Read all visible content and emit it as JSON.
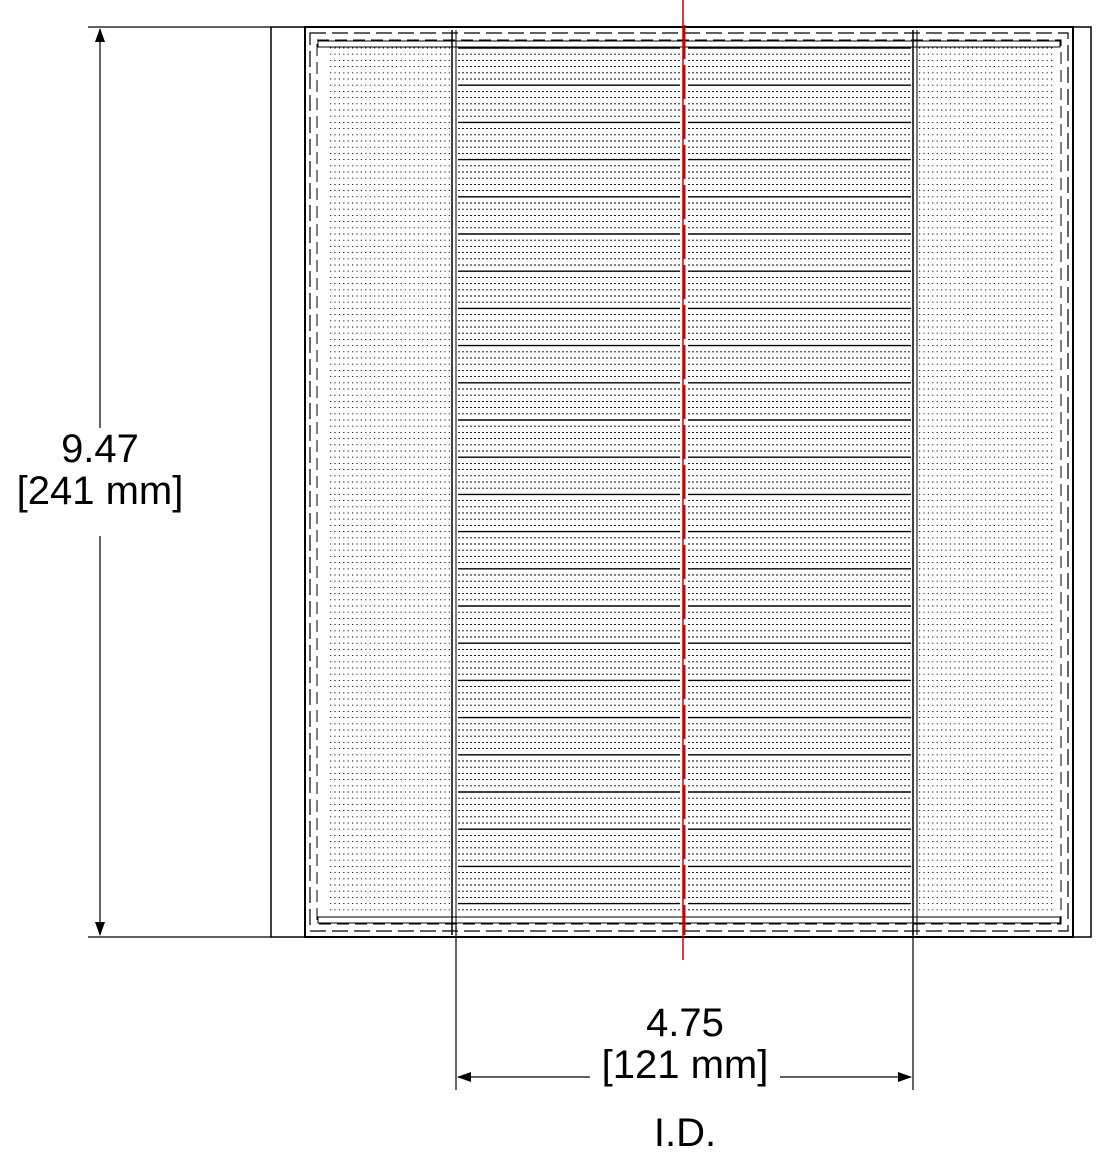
{
  "dimensions": {
    "height": {
      "inches": "9.47",
      "mm": "[241 mm]"
    },
    "inner_diameter": {
      "inches": "4.75",
      "mm": "[121 mm]",
      "note": "I.D."
    }
  },
  "colors": {
    "line": "#000000",
    "centerline": "#cc0000",
    "background": "#ffffff"
  }
}
